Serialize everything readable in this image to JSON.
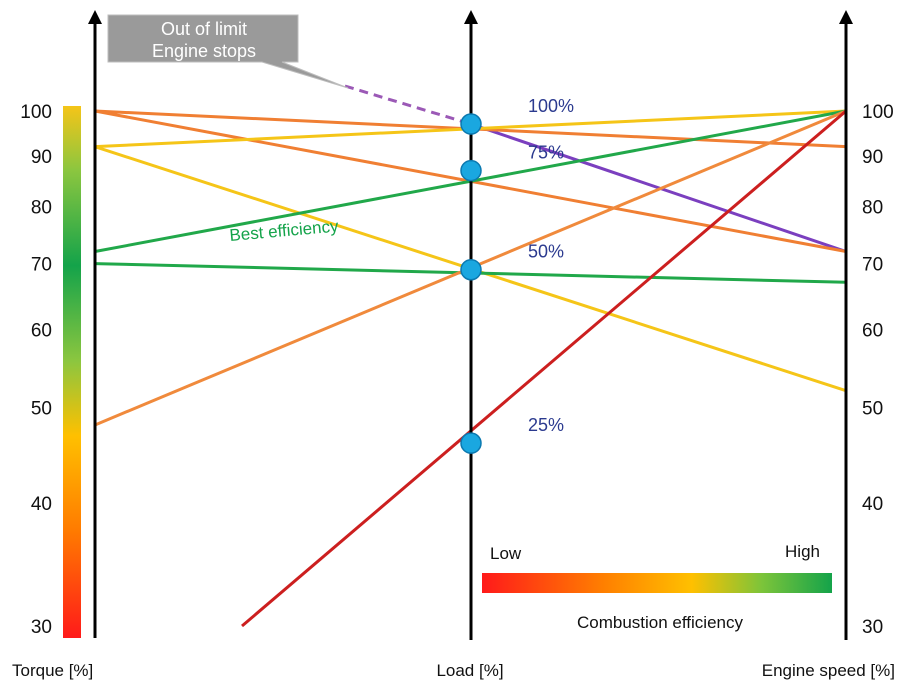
{
  "axes": {
    "torque": {
      "title": "Torque [%]",
      "ticks": [
        "100",
        "90",
        "80",
        "70",
        "60",
        "50",
        "40",
        "30"
      ],
      "scale": "log",
      "range": [
        30,
        100
      ]
    },
    "load": {
      "title": "Load [%]"
    },
    "engine_speed": {
      "title": "Engine speed [%]",
      "ticks": [
        "100",
        "90",
        "80",
        "70",
        "60",
        "50",
        "40",
        "30"
      ],
      "scale": "log",
      "range": [
        30,
        100
      ]
    }
  },
  "load_points": [
    {
      "label": "100%",
      "torque": 97
    },
    {
      "label": "75%",
      "torque": 87
    },
    {
      "label": "50%",
      "torque": 69
    },
    {
      "label": "25%",
      "torque": 46
    }
  ],
  "lines": [
    {
      "color": "#9b59b6",
      "dashed": true,
      "torque_start": 100,
      "torque_end": 97
    },
    {
      "color": "#7b3fbf",
      "torque_start": 97,
      "torque_end": 72
    },
    {
      "color": "#f07f33",
      "torque_start": 100,
      "torque_end": 92
    },
    {
      "color": "#f07f33",
      "torque_start": 100,
      "torque_end": 72
    },
    {
      "color": "#f5c518",
      "torque_start": 92,
      "torque_end": 100
    },
    {
      "color": "#f5c518",
      "torque_start": 92,
      "torque_end": 52
    },
    {
      "color": "#21a84a",
      "torque_start": 72,
      "torque_end": 100
    },
    {
      "color": "#21a84a",
      "torque_start": 70,
      "torque_end": 67
    },
    {
      "color": "#f08a3c",
      "torque_start": 48,
      "torque_end": 100
    },
    {
      "color": "#cc1f1f",
      "torque_start": 30,
      "torque_end": 100
    }
  ],
  "annotations": {
    "callout_line1": "Out of limit",
    "callout_line2": "Engine stops",
    "best_efficiency": "Best efficiency"
  },
  "legend": {
    "low": "Low",
    "high": "High",
    "title": "Combustion efficiency",
    "colors": [
      "#ff1a1a",
      "#ff8000",
      "#ffc000",
      "#7cc43a",
      "#14a34a"
    ]
  },
  "torque_color_bar": {
    "colors": [
      "#ff1a1a",
      "#ff7a00",
      "#ffc000",
      "#8cc63f",
      "#14a34a",
      "#f5c518"
    ]
  }
}
